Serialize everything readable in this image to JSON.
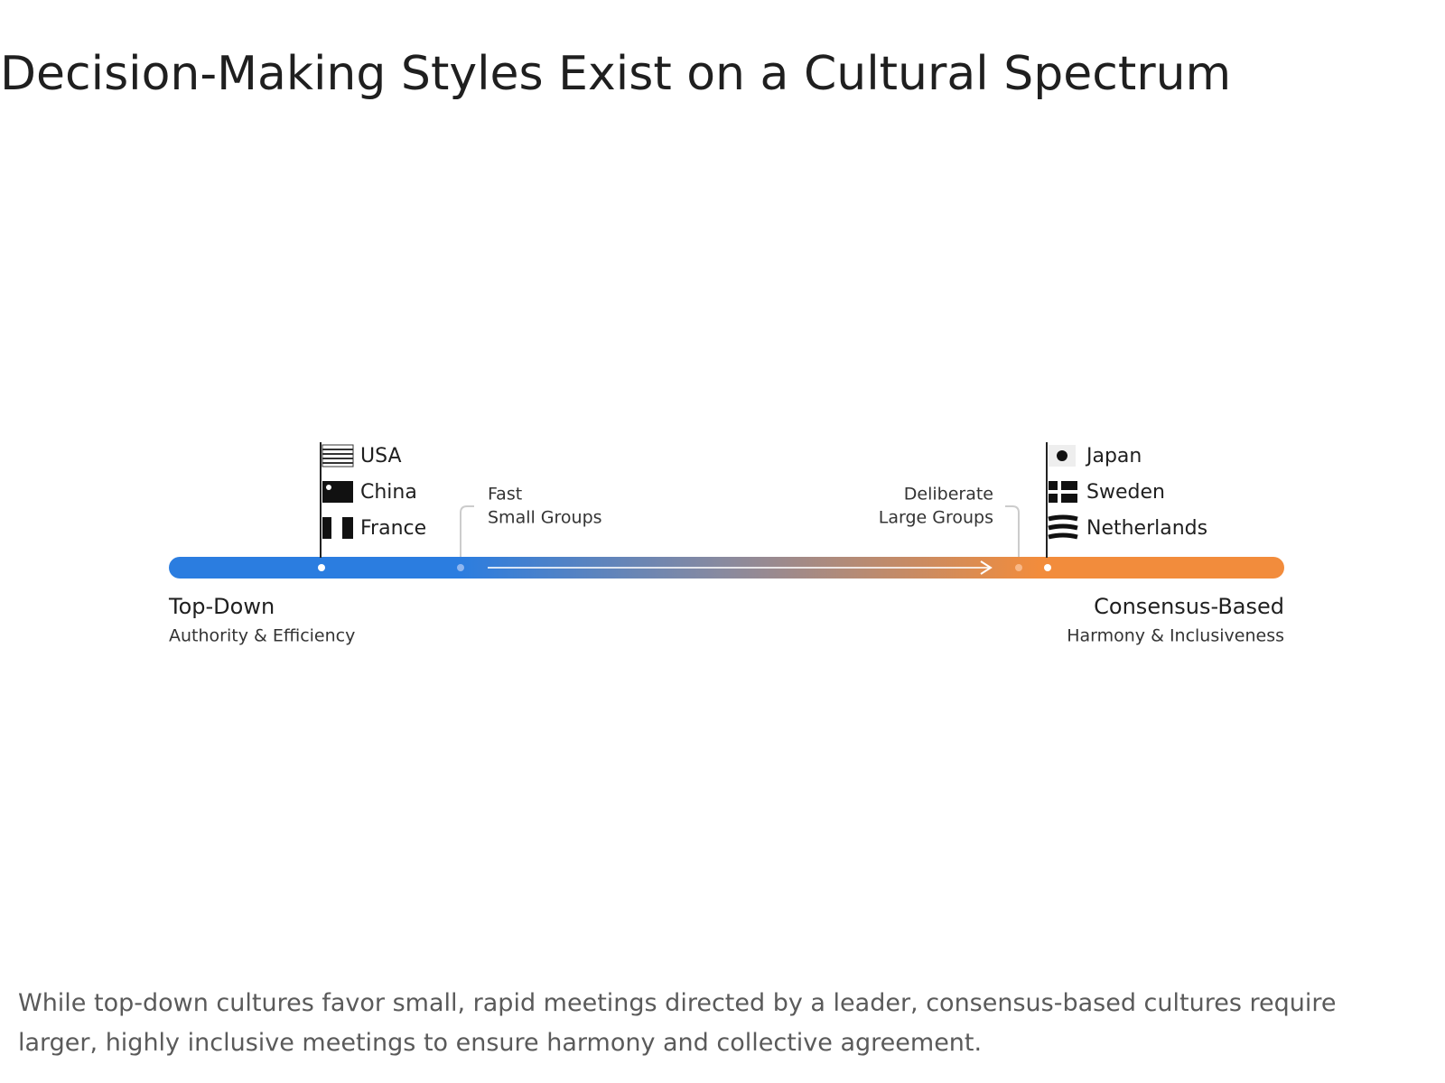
{
  "title": "Decision-Making Styles Exist on a Cultural Spectrum",
  "spectrum": {
    "left": {
      "label": "Top-Down",
      "sublabel": "Authority & Efficiency",
      "countries": [
        "USA",
        "China",
        "France"
      ]
    },
    "right": {
      "label": "Consensus-Based",
      "sublabel": "Harmony & Inclusiveness",
      "countries": [
        "Japan",
        "Sweden",
        "Netherlands"
      ]
    },
    "annotations": [
      {
        "lines": [
          "Fast",
          "Small Groups"
        ]
      },
      {
        "lines": [
          "Deliberate",
          "Large Groups"
        ]
      }
    ]
  },
  "caption": "While top-down cultures favor small, rapid meetings directed by a leader, consensus-based cultures require larger, highly inclusive meetings to ensure harmony and collective agreement."
}
